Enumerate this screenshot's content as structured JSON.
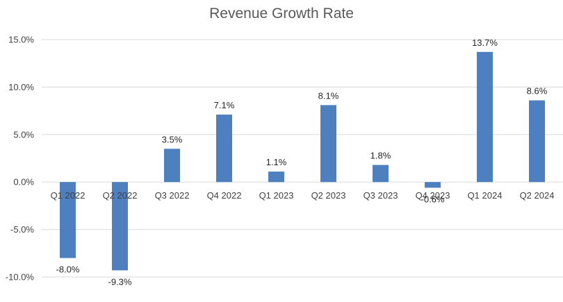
{
  "chart_data": {
    "type": "bar",
    "title": "Revenue Growth Rate",
    "xlabel": "",
    "ylabel": "",
    "categories": [
      "Q1 2022",
      "Q2 2022",
      "Q3 2022",
      "Q4 2022",
      "Q1 2023",
      "Q2 2023",
      "Q3 2023",
      "Q4 2023",
      "Q1 2024",
      "Q2 2024"
    ],
    "values": [
      -8.0,
      -9.3,
      3.5,
      7.1,
      1.1,
      8.1,
      1.8,
      -0.6,
      13.7,
      8.6
    ],
    "data_labels": [
      "-8.0%",
      "-9.3%",
      "3.5%",
      "7.1%",
      "1.1%",
      "8.1%",
      "1.8%",
      "-0.6%",
      "13.7%",
      "8.6%"
    ],
    "ylim": [
      -10,
      15
    ],
    "y_ticks": [
      15,
      10,
      5,
      0,
      -5,
      -10
    ],
    "y_tick_labels": [
      "15.0%",
      "10.0%",
      "5.0%",
      "0.0%",
      "-5.0%",
      "-10.0%"
    ],
    "grid": true,
    "legend": "none",
    "bar_color": "#4e7fbf",
    "grid_color": "#d9d9d9"
  }
}
